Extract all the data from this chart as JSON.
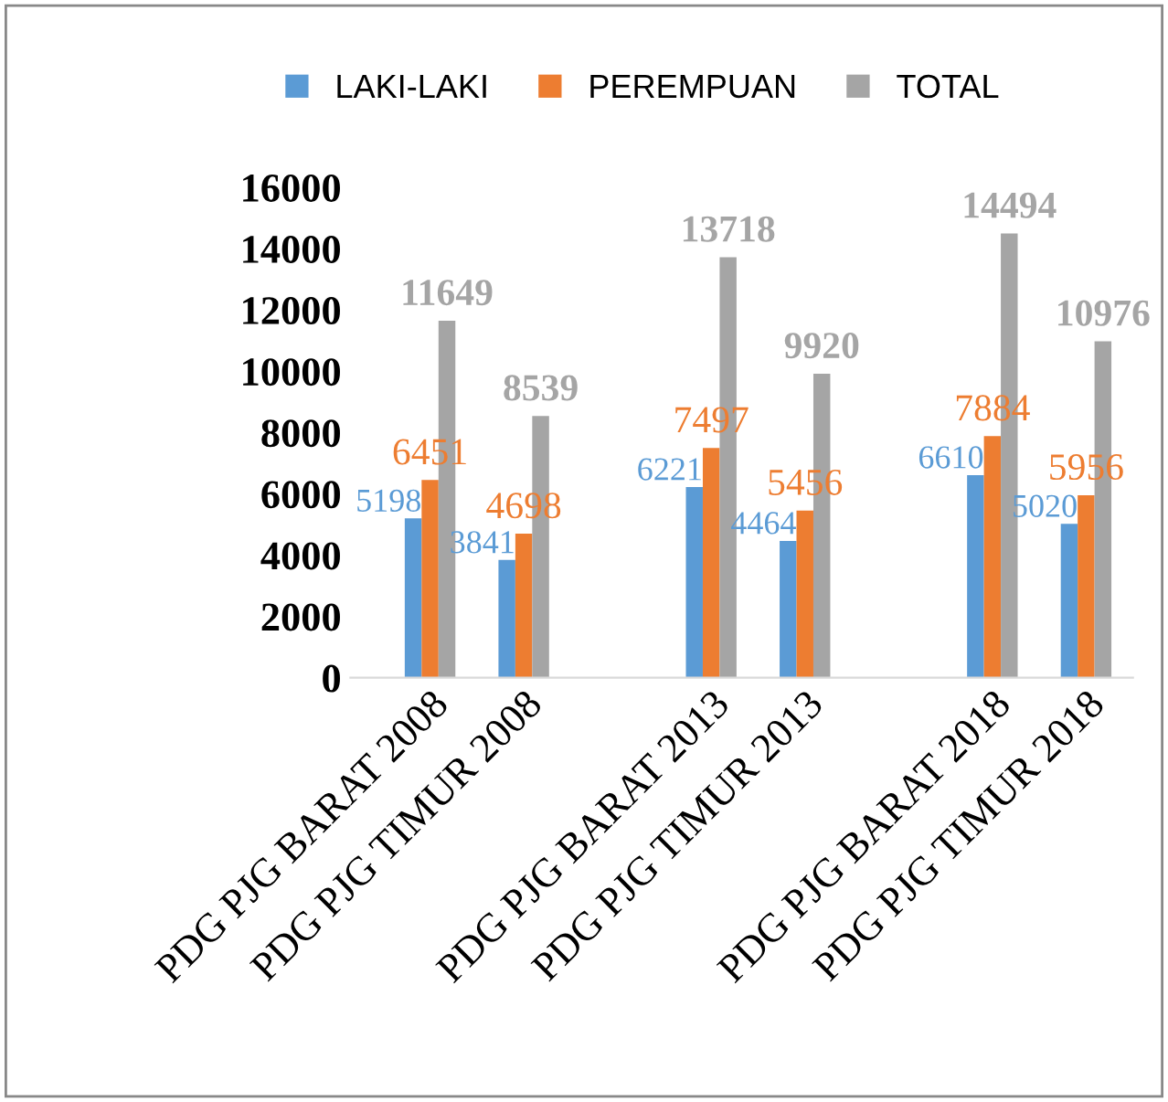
{
  "chart_data": {
    "type": "bar",
    "categories": [
      "PDG PJG BARAT 2008",
      "PDG PJG TIMUR 2008",
      null,
      "PDG PJG BARAT 2013",
      "PDG PJG TIMUR 2013",
      null,
      "PDG PJG BARAT 2018",
      "PDG PJG TIMUR 2018"
    ],
    "series": [
      {
        "name": "LAKI-LAKI",
        "color": "#5b9bd5",
        "values": [
          5198,
          3841,
          null,
          6221,
          4464,
          null,
          6610,
          5020
        ]
      },
      {
        "name": "PEREMPUAN",
        "color": "#ed7d31",
        "values": [
          6451,
          4698,
          null,
          7497,
          5456,
          null,
          7884,
          5956
        ]
      },
      {
        "name": "TOTAL",
        "color": "#a5a5a5",
        "values": [
          11649,
          8539,
          null,
          13718,
          9920,
          null,
          14494,
          10976
        ]
      }
    ],
    "ylim": [
      0,
      16000
    ],
    "yticks": [
      0,
      2000,
      4000,
      6000,
      8000,
      10000,
      12000,
      14000,
      16000
    ],
    "grid": false,
    "legend": "top",
    "data_labels": true
  }
}
